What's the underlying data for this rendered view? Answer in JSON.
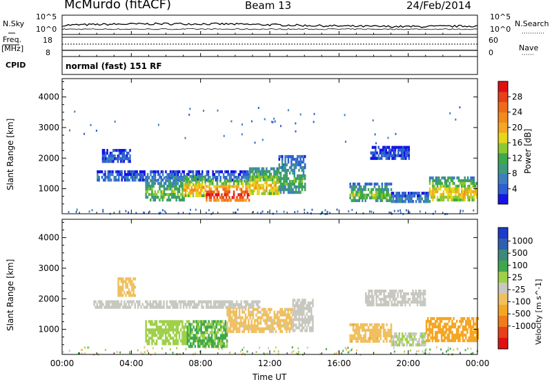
{
  "header": {
    "station": "McMurdo (fitACF)",
    "beam": "Beam 13",
    "date": "24/Feb/2014"
  },
  "sky_panel": {
    "left_label": "N.Sky",
    "right_label": "N.Search",
    "left_ticks": [
      "10^5",
      "10^0"
    ],
    "right_ticks": [
      "10^5",
      "10^0"
    ]
  },
  "freq_panel": {
    "left_label_1": "Freq.",
    "left_label_2": "[MHz]",
    "right_label": "Nave",
    "left_ticks": [
      "18",
      "8"
    ],
    "right_ticks": [
      "60",
      "0"
    ]
  },
  "cpid_panel": {
    "label": "CPID",
    "text": "normal (fast) 151 RF"
  },
  "chart_data": [
    {
      "type": "heatmap",
      "title": "",
      "xlabel": "Time UT",
      "ylabel": "Slant Range [km]",
      "xlim": [
        "00:00",
        "00:00"
      ],
      "ylim": [
        180,
        4600
      ],
      "x_ticks": [
        "00:00",
        "04:00",
        "08:00",
        "12:00",
        "16:00",
        "20:00",
        "00:00"
      ],
      "y_ticks": [
        1000,
        2000,
        3000,
        4000
      ],
      "colorbar": {
        "label": "Power [dB]",
        "ticks": [
          4,
          8,
          12,
          16,
          20,
          24,
          28
        ],
        "range": [
          0,
          32
        ],
        "colors": [
          "#1414e6",
          "#2d5fd2",
          "#3f7fbf",
          "#3d9a7a",
          "#3fa84a",
          "#8ec830",
          "#e6d61a",
          "#f5a623",
          "#f28a1e",
          "#ef6b1a",
          "#e8401a",
          "#e01010"
        ]
      },
      "echo_regions": [
        {
          "t_start": 2.0,
          "t_end": 11.5,
          "r_min": 1300,
          "r_max": 1600,
          "level": 6
        },
        {
          "t_start": 2.3,
          "t_end": 3.9,
          "r_min": 1900,
          "r_max": 2300,
          "level": 5
        },
        {
          "t_start": 4.8,
          "t_end": 7.0,
          "r_min": 650,
          "r_max": 1400,
          "level": 14
        },
        {
          "t_start": 7.0,
          "t_end": 8.3,
          "r_min": 800,
          "r_max": 1450,
          "level": 22
        },
        {
          "t_start": 8.3,
          "t_end": 10.8,
          "r_min": 600,
          "r_max": 1300,
          "level": 30
        },
        {
          "t_start": 10.8,
          "t_end": 12.5,
          "r_min": 800,
          "r_max": 1700,
          "level": 20
        },
        {
          "t_start": 12.5,
          "t_end": 14.0,
          "r_min": 900,
          "r_max": 2100,
          "level": 12
        },
        {
          "t_start": 16.6,
          "t_end": 19.0,
          "r_min": 650,
          "r_max": 1200,
          "level": 14
        },
        {
          "t_start": 19.0,
          "t_end": 21.2,
          "r_min": 550,
          "r_max": 900,
          "level": 8
        },
        {
          "t_start": 21.2,
          "t_end": 24.0,
          "r_min": 650,
          "r_max": 1400,
          "level": 20
        },
        {
          "t_start": 17.8,
          "t_end": 20.0,
          "r_min": 2000,
          "r_max": 2400,
          "level": 4
        }
      ]
    },
    {
      "type": "heatmap",
      "title": "",
      "xlabel": "Time UT",
      "ylabel": "Slant Range [km]",
      "xlim": [
        "00:00",
        "00:00"
      ],
      "ylim": [
        180,
        4600
      ],
      "x_ticks": [
        "00:00",
        "04:00",
        "08:00",
        "12:00",
        "16:00",
        "20:00",
        "00:00"
      ],
      "y_ticks": [
        1000,
        2000,
        3000,
        4000
      ],
      "colorbar": {
        "label": "Velocity [m s^-1]",
        "ticks": [
          "1000",
          "500",
          "100",
          "25",
          "-25",
          "-100",
          "-500",
          "-1000"
        ],
        "range": [
          -1000,
          1000
        ],
        "colors": [
          "#1a3cc8",
          "#2e5fb0",
          "#3d8a7a",
          "#3fa84a",
          "#9fd04a",
          "#c8c8c0",
          "#f0c060",
          "#f5a623",
          "#f07d1a",
          "#e8401a",
          "#e01010"
        ]
      },
      "echo_regions": [
        {
          "t_start": 1.8,
          "t_end": 11.5,
          "r_min": 1700,
          "r_max": 1950,
          "velocity": 0
        },
        {
          "t_start": 3.2,
          "t_end": 4.2,
          "r_min": 2100,
          "r_max": 2700,
          "velocity": -200
        },
        {
          "t_start": 4.8,
          "t_end": 7.2,
          "r_min": 500,
          "r_max": 1300,
          "velocity": 200
        },
        {
          "t_start": 7.2,
          "t_end": 9.5,
          "r_min": 400,
          "r_max": 1300,
          "velocity": 300
        },
        {
          "t_start": 9.5,
          "t_end": 13.3,
          "r_min": 900,
          "r_max": 1700,
          "velocity": -150
        },
        {
          "t_start": 13.3,
          "t_end": 14.5,
          "r_min": 1000,
          "r_max": 2000,
          "velocity": 0
        },
        {
          "t_start": 16.6,
          "t_end": 19.0,
          "r_min": 600,
          "r_max": 1200,
          "velocity": -200
        },
        {
          "t_start": 19.0,
          "t_end": 21.0,
          "r_min": 500,
          "r_max": 900,
          "velocity": 80
        },
        {
          "t_start": 21.0,
          "t_end": 24.0,
          "r_min": 600,
          "r_max": 1400,
          "velocity": -350
        },
        {
          "t_start": 17.5,
          "t_end": 21.0,
          "r_min": 1800,
          "r_max": 2300,
          "velocity": 0
        }
      ]
    }
  ]
}
